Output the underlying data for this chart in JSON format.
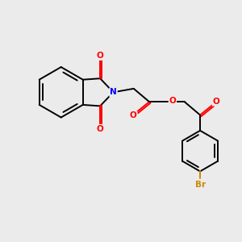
{
  "background_color": "#ebebeb",
  "bond_color": "#000000",
  "oxygen_color": "#ff0000",
  "nitrogen_color": "#0000ff",
  "bromine_color": "#cc8800",
  "line_width": 1.4,
  "figsize": [
    3.0,
    3.0
  ],
  "dpi": 100,
  "xlim": [
    0,
    10
  ],
  "ylim": [
    0,
    10
  ]
}
